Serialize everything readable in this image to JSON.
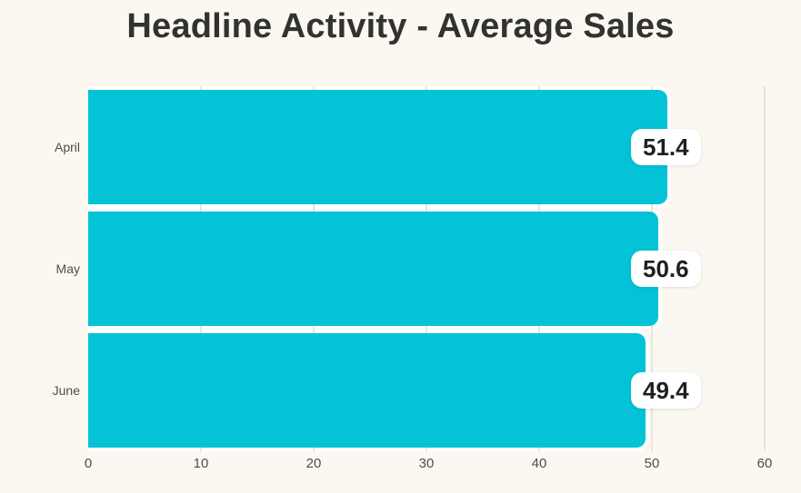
{
  "chart_data": {
    "type": "bar",
    "orientation": "horizontal",
    "title": "Headline Activity - Average Sales",
    "categories": [
      "April",
      "May",
      "June"
    ],
    "values": [
      51.4,
      50.6,
      49.4
    ],
    "value_labels": [
      "51.4",
      "50.6",
      "49.4"
    ],
    "xlabel": "",
    "ylabel": "",
    "xlim": [
      0,
      60
    ],
    "x_ticks": [
      0,
      10,
      20,
      30,
      40,
      50,
      60
    ],
    "grid": "vertical-gridlines",
    "legend": "none",
    "colors": {
      "background": "#fbf8f1",
      "bar": "#04c3d7",
      "bar_outline": "#ffffff",
      "gridline": "#e8e5de",
      "title_text": "#32322f",
      "axis_text": "#4f4d49",
      "value_text": "#1f1f1f",
      "value_badge_bg": "#ffffff"
    }
  }
}
